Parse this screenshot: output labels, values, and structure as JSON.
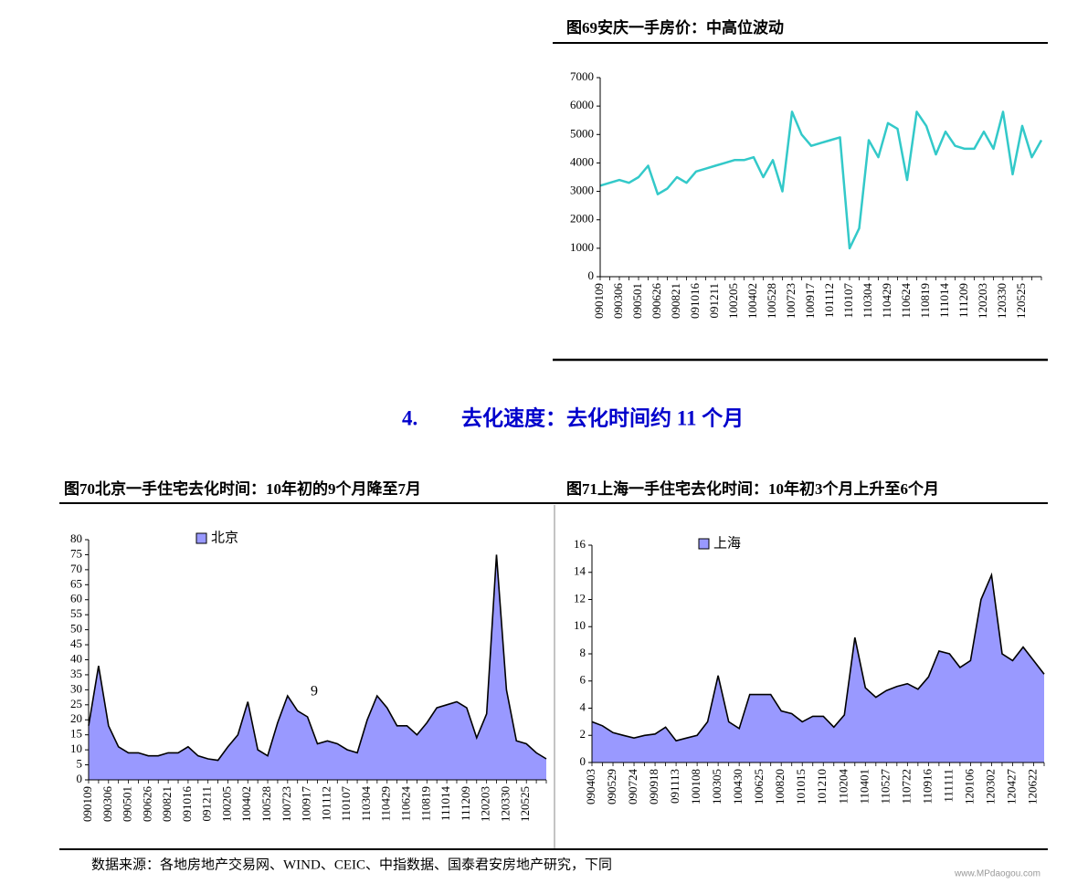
{
  "section_number": "4.",
  "section_title": "去化速度：去化时间约 11 个月",
  "source": "数据来源：各地房地产交易网、WIND、CEIC、中指数据、国泰君安房地产研究，下同",
  "watermark": "www.MPdaogou.com",
  "chart_data": [
    {
      "type": "line",
      "title": "图69安庆一手房价：中高位波动",
      "color": "#33c9c9",
      "categories": [
        "090109",
        null,
        "090306",
        null,
        "090501",
        null,
        "090626",
        null,
        "090821",
        null,
        "091016",
        null,
        "091211",
        null,
        "100205",
        null,
        "100402",
        null,
        "100528",
        null,
        "100723",
        null,
        "100917",
        null,
        "101112",
        null,
        "110107",
        null,
        "110304",
        null,
        "110429",
        null,
        "110624",
        null,
        "110819",
        null,
        "111014",
        null,
        "111209",
        null,
        "120203",
        null,
        "120330",
        null,
        "120525",
        null,
        null
      ],
      "values": [
        3200,
        3300,
        3400,
        3300,
        3500,
        3900,
        2900,
        3100,
        3500,
        3300,
        3700,
        3800,
        3900,
        4000,
        4100,
        4100,
        4200,
        3500,
        4100,
        3000,
        5800,
        5000,
        4600,
        4700,
        4800,
        4900,
        1000,
        1700,
        4800,
        4200,
        5400,
        5200,
        3400,
        5800,
        5300,
        4300,
        5100,
        4600,
        4500,
        4500,
        5100,
        4500,
        5800,
        3600,
        5300,
        4200,
        4800
      ],
      "ylim": [
        0,
        7000
      ],
      "yticks": [
        0,
        1000,
        2000,
        3000,
        4000,
        5000,
        6000,
        7000
      ]
    },
    {
      "type": "area",
      "title": "图70北京一手住宅去化时间：10年初的9个月降至7月",
      "annotation": "9",
      "categories": [
        "090109",
        null,
        "090306",
        null,
        "090501",
        null,
        "090626",
        null,
        "090821",
        null,
        "091016",
        null,
        "091211",
        null,
        "100205",
        null,
        "100402",
        null,
        "100528",
        null,
        "100723",
        null,
        "100917",
        null,
        "101112",
        null,
        "110107",
        null,
        "110304",
        null,
        "110429",
        null,
        "110624",
        null,
        "110819",
        null,
        "111014",
        null,
        "111209",
        null,
        "120203",
        null,
        "120330",
        null,
        "120525",
        null,
        null
      ],
      "series": [
        {
          "name": "北京",
          "color": "#9999ff",
          "values": [
            18,
            38,
            18,
            11,
            9,
            9,
            8,
            8,
            9,
            9,
            11,
            8,
            7,
            6.5,
            11,
            15,
            26,
            10,
            8,
            19,
            28,
            23,
            21,
            12,
            13,
            12,
            10,
            9,
            20,
            28,
            24,
            18,
            18,
            15,
            19,
            24,
            25,
            26,
            24,
            14,
            22,
            75,
            30,
            13,
            12,
            9,
            7
          ]
        }
      ],
      "ylim": [
        0,
        80
      ],
      "yticks": [
        0,
        5,
        10,
        15,
        20,
        25,
        30,
        35,
        40,
        45,
        50,
        55,
        60,
        65,
        70,
        75,
        80
      ],
      "legend": "top-left"
    },
    {
      "type": "area",
      "title": "图71上海一手住宅去化时间：10年初3个月上升至6个月",
      "categories": [
        "090403",
        null,
        "090529",
        null,
        "090724",
        null,
        "090918",
        null,
        "091113",
        null,
        "100108",
        null,
        "100305",
        null,
        "100430",
        null,
        "100625",
        null,
        "100820",
        null,
        "101015",
        null,
        "101210",
        null,
        "110204",
        null,
        "110401",
        null,
        "110527",
        null,
        "110722",
        null,
        "110916",
        null,
        "111111",
        null,
        "120106",
        null,
        "120302",
        null,
        "120427",
        null,
        "120622",
        null
      ],
      "series": [
        {
          "name": "上海",
          "color": "#9999ff",
          "values": [
            3.0,
            2.7,
            2.2,
            2.0,
            1.8,
            2.0,
            2.1,
            2.6,
            1.6,
            1.8,
            2.0,
            3.0,
            6.4,
            3.0,
            2.5,
            5.0,
            5.0,
            5.0,
            3.8,
            3.6,
            3.0,
            3.4,
            3.4,
            2.6,
            3.5,
            9.2,
            5.5,
            4.8,
            5.3,
            5.6,
            5.8,
            5.4,
            6.3,
            8.2,
            8.0,
            7.0,
            7.5,
            12,
            13.8,
            8,
            7.5,
            8.5,
            7.5,
            6.5
          ]
        }
      ],
      "ylim": [
        0,
        16
      ],
      "yticks": [
        0,
        2,
        4,
        6,
        8,
        10,
        12,
        14,
        16
      ],
      "legend": "top-left"
    }
  ]
}
